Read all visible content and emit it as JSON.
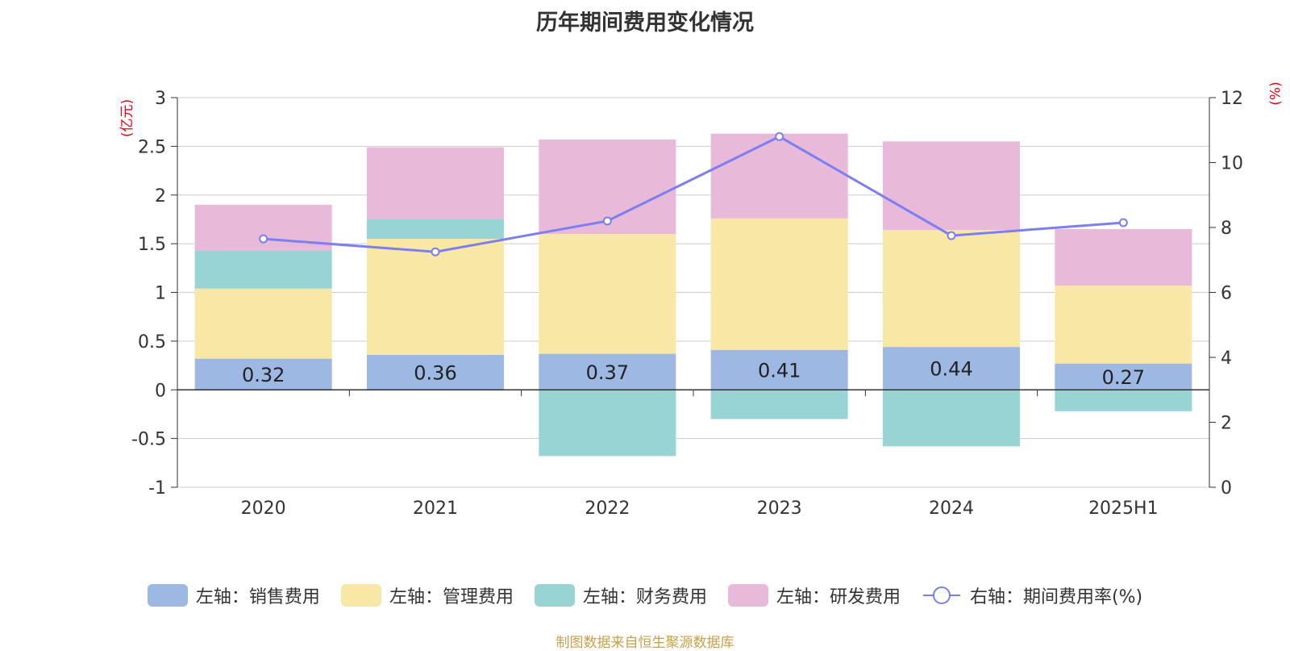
{
  "title": "历年期间费用变化情况",
  "source_note": "制图数据来自恒生聚源数据库",
  "chart_data": {
    "type": "bar",
    "stacked": true,
    "categories": [
      "2020",
      "2021",
      "2022",
      "2023",
      "2024",
      "2025H1"
    ],
    "left_axis": {
      "unit": "(亿元)",
      "min": -1,
      "max": 3,
      "ticks": [
        "-1",
        "-0.5",
        "0",
        "0.5",
        "1",
        "1.5",
        "2",
        "2.5",
        "3"
      ]
    },
    "right_axis": {
      "unit": "(%)",
      "min": 0,
      "max": 12,
      "ticks": [
        "0",
        "2",
        "4",
        "6",
        "8",
        "10",
        "12"
      ]
    },
    "series": [
      {
        "name": "左轴：销售费用",
        "color": "#9db8e2",
        "values": [
          0.32,
          0.36,
          0.37,
          0.41,
          0.44,
          0.27
        ],
        "labels": [
          "0.32",
          "0.36",
          "0.37",
          "0.41",
          "0.44",
          "0.27"
        ]
      },
      {
        "name": "左轴：管理费用",
        "color": "#f9e7a6",
        "values": [
          0.72,
          1.19,
          1.23,
          1.35,
          1.2,
          0.8
        ]
      },
      {
        "name": "左轴：财务费用",
        "color": "#99d4d4",
        "values": [
          0.39,
          0.2,
          -0.68,
          -0.3,
          -0.58,
          -0.22
        ]
      },
      {
        "name": "左轴：研发费用",
        "color": "#e8b9d9",
        "values": [
          0.47,
          0.74,
          0.97,
          0.87,
          0.91,
          0.58
        ]
      }
    ],
    "line_series": {
      "name": "右轴：期间费用率(%)",
      "color": "#7b7ff0",
      "values": [
        7.65,
        7.25,
        8.2,
        10.8,
        7.75,
        8.15
      ]
    },
    "grid": true,
    "legend_position": "bottom"
  }
}
